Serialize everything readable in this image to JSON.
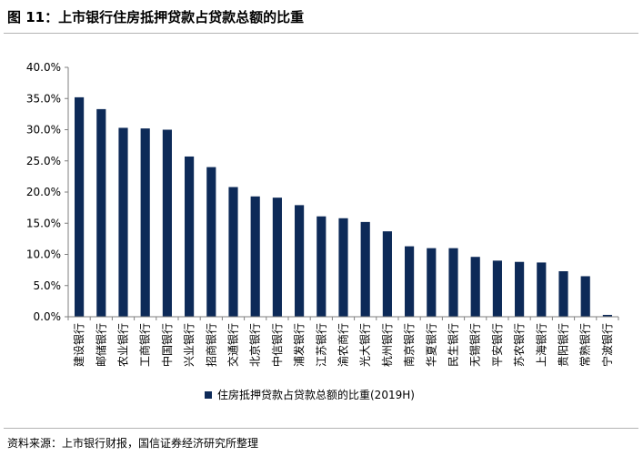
{
  "title": "图 11：上市银行住房抵押贷款占贷款总额的比重",
  "source": "资料来源：上市银行财报，国信证券经济研究所整理",
  "colors": {
    "bar": "#0d2a58",
    "axis": "#7f7f7f",
    "text": "#000000"
  },
  "chart_data": {
    "type": "bar",
    "categories": [
      "建设银行",
      "邮储银行",
      "农业银行",
      "工商银行",
      "中国银行",
      "兴业银行",
      "招商银行",
      "交通银行",
      "北京银行",
      "中信银行",
      "浦发银行",
      "江苏银行",
      "渝农商行",
      "光大银行",
      "杭州银行",
      "南京银行",
      "华夏银行",
      "民生银行",
      "无锡银行",
      "平安银行",
      "苏农银行",
      "上海银行",
      "贵阳银行",
      "常熟银行",
      "宁波银行"
    ],
    "series": [
      {
        "name": "住房抵押贷款占贷款总额的比重(2019H)",
        "values": [
          0.352,
          0.333,
          0.303,
          0.302,
          0.3,
          0.257,
          0.24,
          0.208,
          0.193,
          0.191,
          0.179,
          0.161,
          0.158,
          0.152,
          0.137,
          0.113,
          0.11,
          0.11,
          0.096,
          0.09,
          0.088,
          0.087,
          0.073,
          0.065,
          0.003
        ]
      }
    ],
    "ylim": [
      0,
      0.4
    ],
    "yticks": [
      "0.0%",
      "5.0%",
      "10.0%",
      "15.0%",
      "20.0%",
      "25.0%",
      "30.0%",
      "35.0%",
      "40.0%"
    ],
    "legend": "bottom-center",
    "grid": false
  }
}
